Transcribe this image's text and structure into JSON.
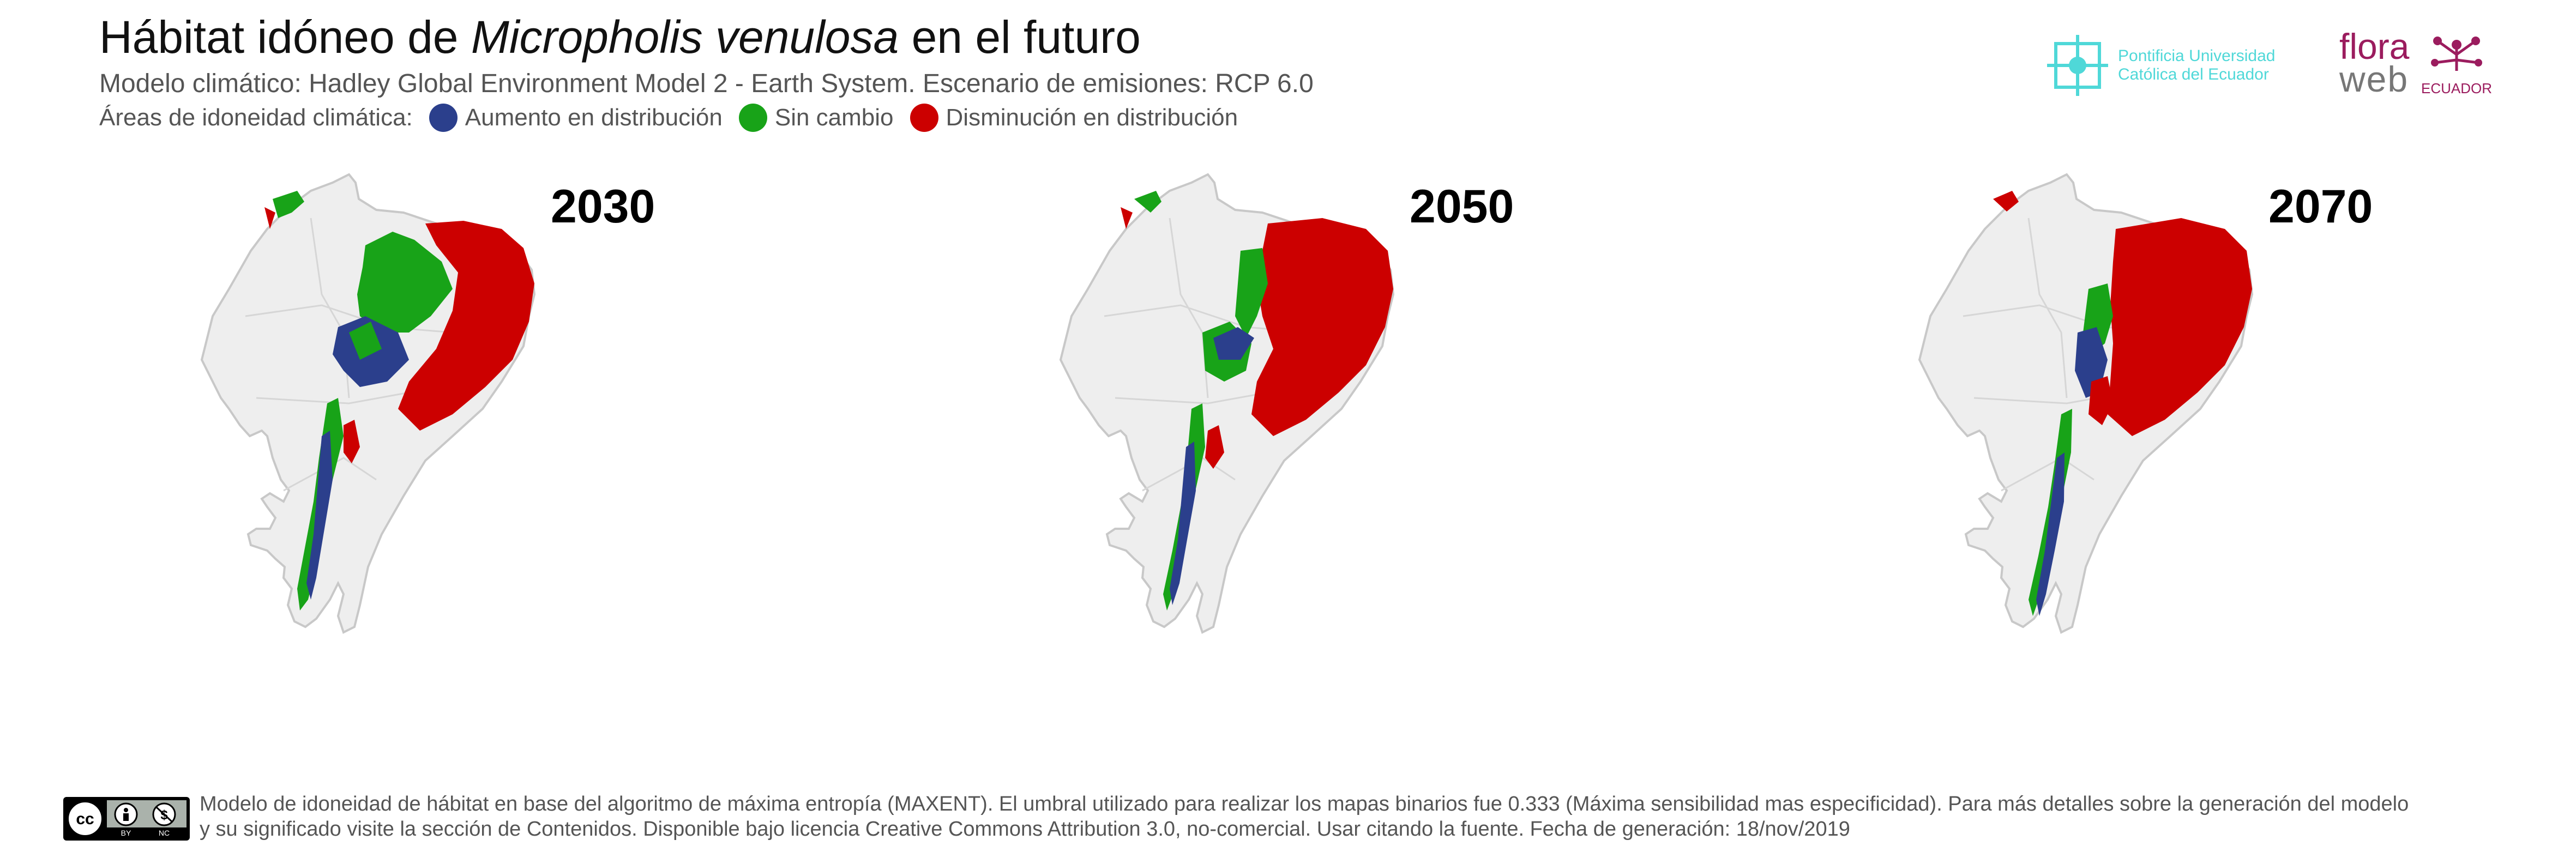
{
  "header": {
    "title_prefix": "Hábitat idóneo de ",
    "species": "Micropholis venulosa",
    "title_suffix": " en el futuro",
    "subtitle": "Modelo climático: Hadley Global Environment Model 2 - Earth System. Escenario de emisiones: RCP 6.0",
    "legend_label": "Áreas de idoneidad climática:"
  },
  "legend": [
    {
      "label": "Aumento en distribución",
      "color": "#2b3f8c"
    },
    {
      "label": "Sin cambio",
      "color": "#18a318"
    },
    {
      "label": "Disminución en distribución",
      "color": "#cc0000"
    }
  ],
  "logos": {
    "puce_line1": "Pontificia Universidad",
    "puce_line2": "Católica del Ecuador",
    "flora": "flora",
    "web": "web",
    "ecuador": "ECUADOR"
  },
  "maps": [
    {
      "year": "2030"
    },
    {
      "year": "2050"
    },
    {
      "year": "2070"
    }
  ],
  "footer": {
    "line1": "Modelo de idoneidad de hábitat en base del algoritmo de máxima entropía (MAXENT). El umbral utilizado para realizar los mapas binarios fue 0.333 (Máxima sensibilidad mas especificidad). Para más detalles sobre la generación del modelo",
    "line2": "y su significado visite la sección de Contenidos. Disponible bajo licencia Creative Commons Attribution 3.0, no-comercial. Usar citando la fuente. Fecha de generación: 18/nov/2019",
    "cc_by": "BY",
    "cc_nc": "NC"
  },
  "colors": {
    "increase": "#2b3f8c",
    "no_change": "#18a318",
    "decrease": "#cc0000",
    "land": "#eeeeee",
    "border": "#c8c8c8"
  }
}
